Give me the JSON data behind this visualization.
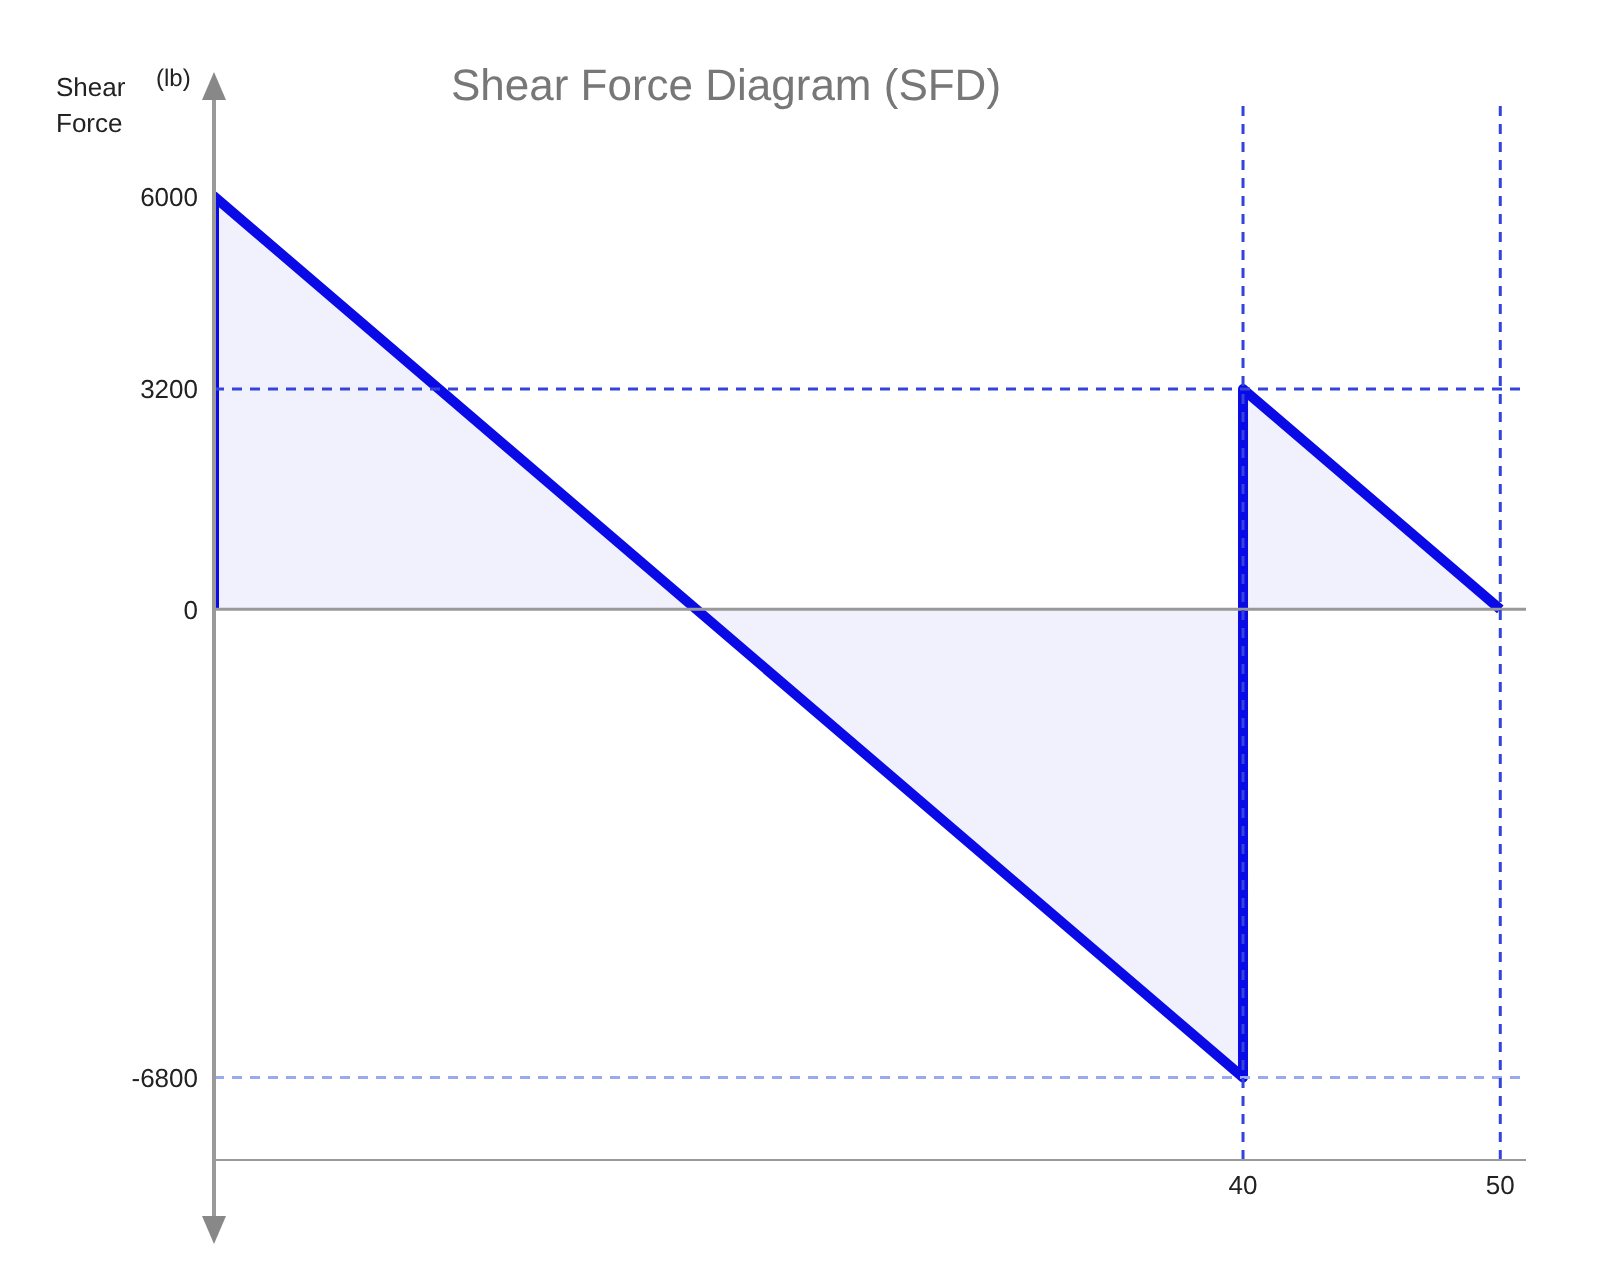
{
  "chart_data": {
    "type": "area",
    "title": "Shear Force Diagram (SFD)",
    "ylabel": "Shear Force",
    "annotations": [
      "(lb)"
    ],
    "x": [
      0,
      0,
      40,
      40,
      50
    ],
    "series": [
      {
        "color": "#0a0ae6",
        "values": [
          0,
          6000,
          -6800,
          3200,
          0
        ]
      }
    ],
    "xlim": [
      0,
      51
    ],
    "xticks": [
      40,
      50
    ],
    "ylim": [
      -8000,
      7400
    ],
    "yticks": [
      -6800,
      0,
      3200,
      6000
    ],
    "grid": false,
    "legend": false,
    "marker": "none",
    "line_style": "solid",
    "ref_lines": [
      {
        "axis": "y",
        "value": 0,
        "color": "#999999",
        "line_style": "solid"
      },
      {
        "axis": "y",
        "value": 3200,
        "color": "#3344dd",
        "line_style": "dashed"
      },
      {
        "axis": "y",
        "value": -6800,
        "color": "#99aaee",
        "line_style": "dashed"
      },
      {
        "axis": "x",
        "value": 40,
        "color": "#3344dd",
        "line_style": "dashed"
      },
      {
        "axis": "x",
        "value": 50,
        "color": "#3344dd",
        "line_style": "dashed"
      }
    ]
  }
}
